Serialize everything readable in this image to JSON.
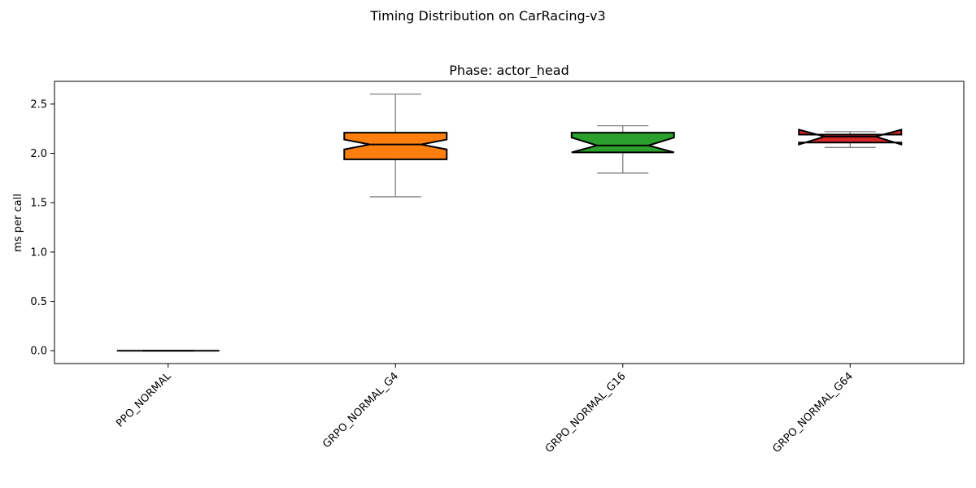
{
  "chart_data": {
    "type": "boxplot",
    "suptitle": "Timing Distribution on CarRacing-v3",
    "title": "Phase: actor_head",
    "xlabel": "",
    "ylabel": "ms per call",
    "ylim": [
      -0.13,
      2.73
    ],
    "yticks": [
      0.0,
      0.5,
      1.0,
      1.5,
      2.0,
      2.5
    ],
    "ytick_labels": [
      "0.0",
      "0.5",
      "1.0",
      "1.5",
      "2.0",
      "2.5"
    ],
    "notched": true,
    "grid": false,
    "categories": [
      "PPO_NORMAL",
      "GRPO_NORMAL_G4",
      "GRPO_NORMAL_G16",
      "GRPO_NORMAL_G64"
    ],
    "boxes": [
      {
        "whislo": 0.0,
        "q1": 0.0,
        "med": 0.0,
        "q3": 0.0,
        "whishi": 0.0,
        "notch_lo": 0.0,
        "notch_hi": 0.0,
        "color": "#1f77b4"
      },
      {
        "whislo": 1.56,
        "q1": 1.94,
        "med": 2.09,
        "q3": 2.21,
        "whishi": 2.6,
        "notch_lo": 2.04,
        "notch_hi": 2.14,
        "color": "#ff7f0e"
      },
      {
        "whislo": 1.8,
        "q1": 2.01,
        "med": 2.08,
        "q3": 2.21,
        "whishi": 2.28,
        "notch_lo": 2.01,
        "notch_hi": 2.16,
        "color": "#2ca02c"
      },
      {
        "whislo": 2.06,
        "q1": 2.11,
        "med": 2.17,
        "q3": 2.19,
        "whishi": 2.22,
        "notch_lo": 2.09,
        "notch_hi": 2.24,
        "color": "#d62728"
      }
    ]
  }
}
